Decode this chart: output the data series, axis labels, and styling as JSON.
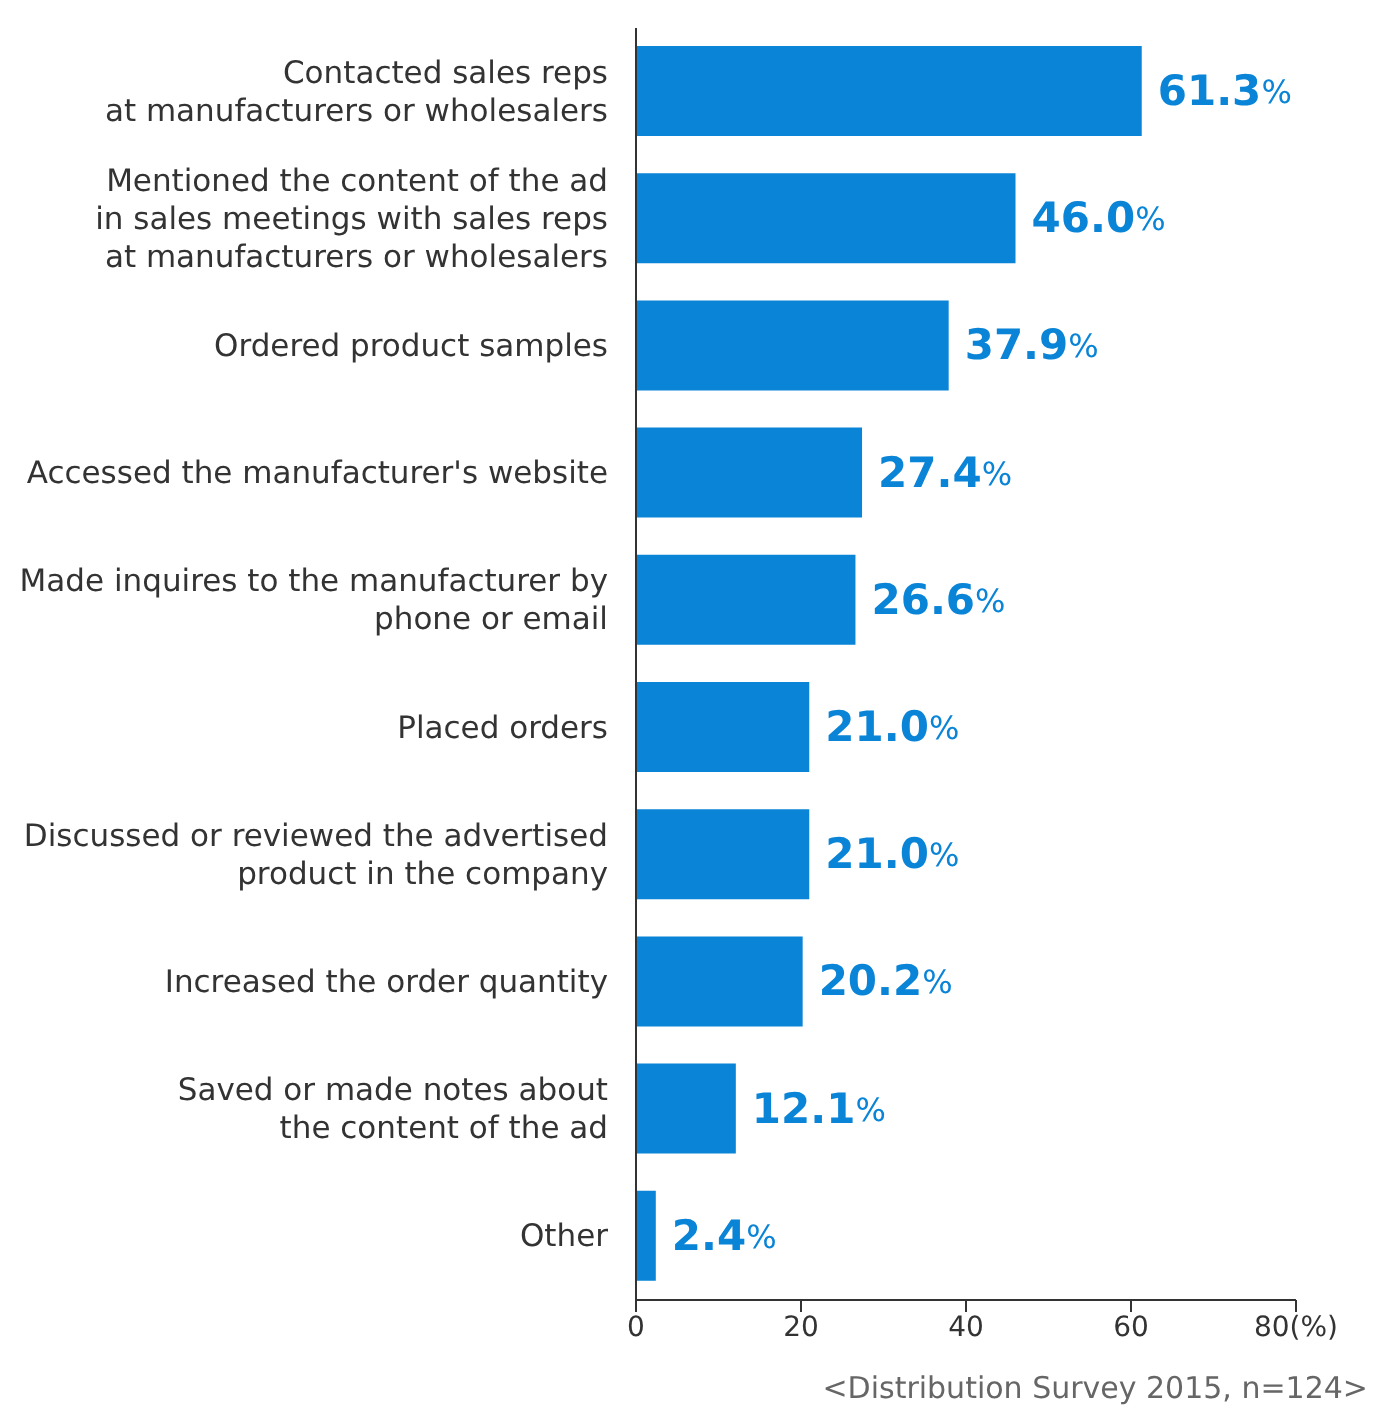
{
  "chart_data": {
    "type": "bar",
    "orientation": "horizontal",
    "categories": [
      "Contacted sales reps\nat manufacturers or wholesalers",
      "Mentioned the content of the ad\nin sales meetings with sales reps\nat manufacturers or wholesalers",
      "Ordered product samples",
      "Accessed the manufacturer's website",
      "Made inquires to the manufacturer by\nphone or email",
      "Placed orders",
      "Discussed or reviewed the advertised\nproduct in the company",
      "Increased the order quantity",
      "Saved or made notes about\nthe content of the ad",
      "Other"
    ],
    "values": [
      61.3,
      46.0,
      37.9,
      27.4,
      26.6,
      21.0,
      21.0,
      20.2,
      12.1,
      2.4
    ],
    "value_labels": [
      "61.3%",
      "46.0%",
      "37.9%",
      "27.4%",
      "26.6%",
      "21.0%",
      "21.0%",
      "20.2%",
      "12.1%",
      "2.4%"
    ],
    "color": "#0a84d6",
    "xlim": [
      0,
      80
    ],
    "xticks": [
      0,
      20,
      40,
      60,
      {
        "value": 80,
        "label": "80(%)"
      }
    ],
    "grid": false,
    "legend": false,
    "annotations": [
      "<Distribution Survey 2015, n=124>"
    ]
  }
}
